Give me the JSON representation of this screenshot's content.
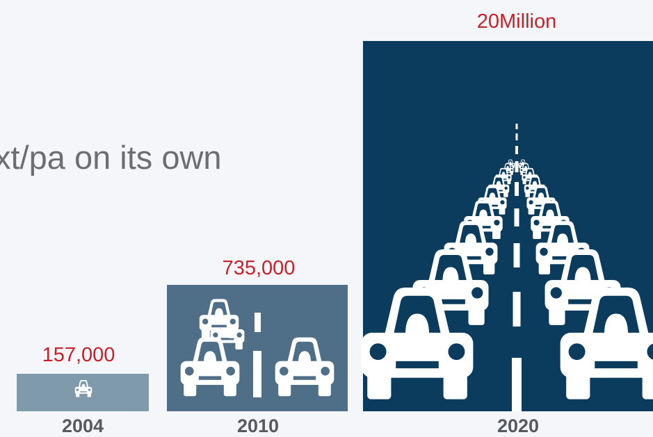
{
  "heading": "xt/pa on its own",
  "items": [
    {
      "year": "2004",
      "value": "157,000"
    },
    {
      "year": "2010",
      "value": "735,000"
    },
    {
      "year": "2020",
      "value": "20Million"
    }
  ]
}
